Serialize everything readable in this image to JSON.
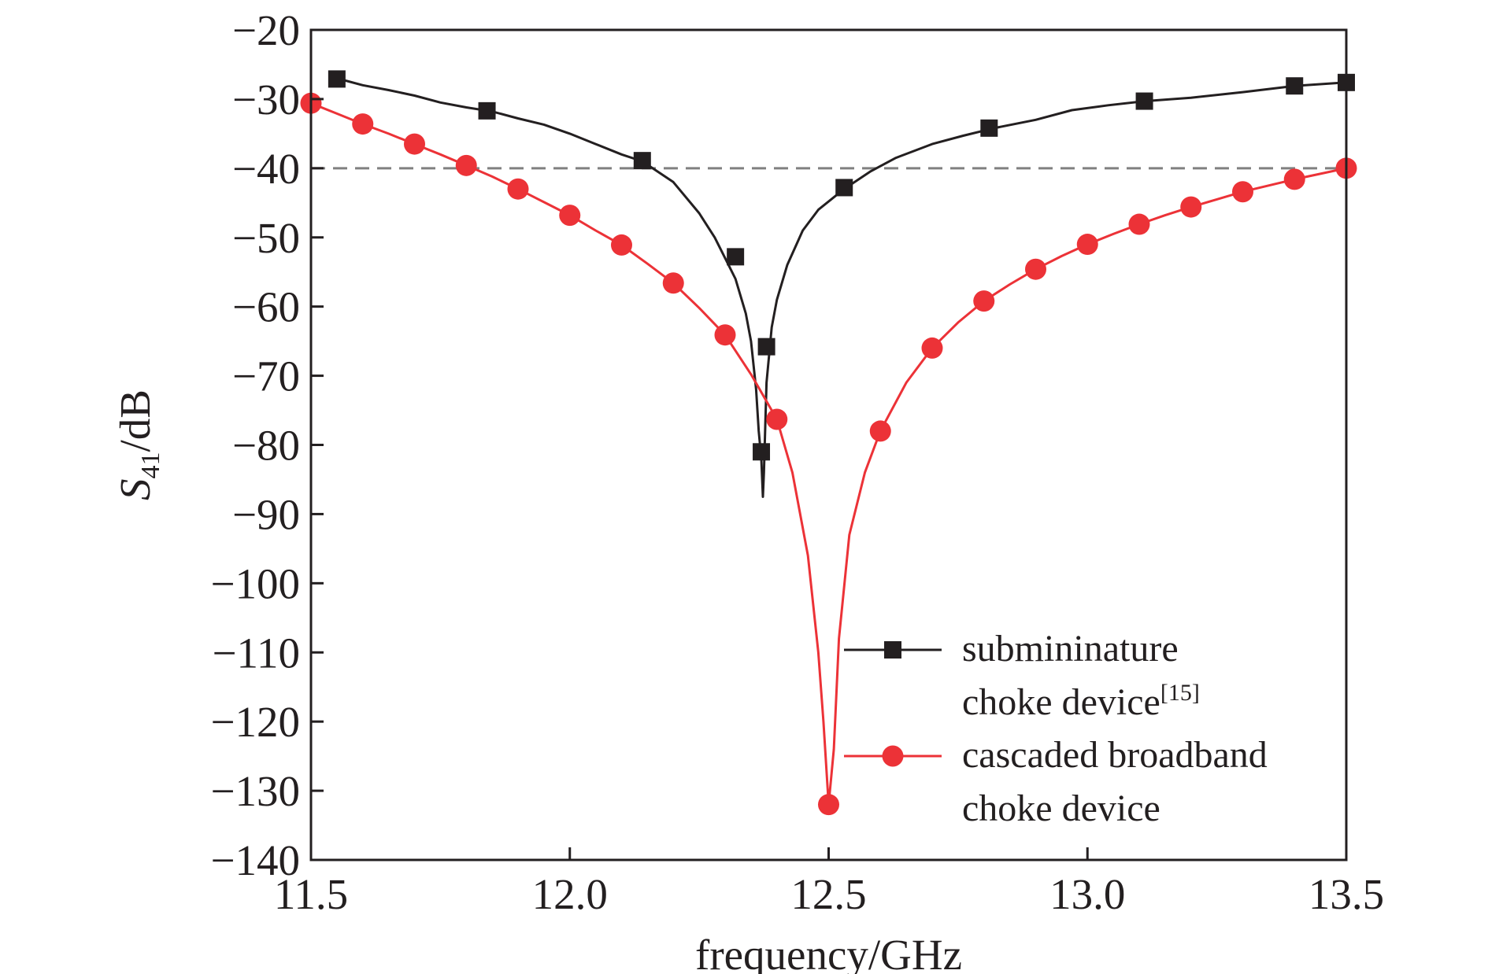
{
  "chart_data": {
    "type": "line",
    "xlabel": "frequency/GHz",
    "ylabel": {
      "main": "S",
      "sub": "41",
      "rest": "/dB"
    },
    "xlim": [
      11.5,
      13.5
    ],
    "ylim": [
      -140,
      -20
    ],
    "xticks": [
      11.5,
      12.0,
      12.5,
      13.0,
      13.5
    ],
    "xtick_labels": [
      "11.5",
      "12.0",
      "12.5",
      "13.0",
      "13.5"
    ],
    "yticks": [
      -20,
      -30,
      -40,
      -50,
      -60,
      -70,
      -80,
      -90,
      -100,
      -110,
      -120,
      -130,
      -140
    ],
    "ytick_labels": [
      "−20",
      "−30",
      "−40",
      "−50",
      "−60",
      "−70",
      "−80",
      "−90",
      "−100",
      "−110",
      "−120",
      "−130",
      "−140"
    ],
    "grid": false,
    "reference_line": {
      "y": -40,
      "style": "dashed",
      "color": "#808080"
    },
    "legend_position": "bottom-right",
    "series": [
      {
        "name_lines": [
          "submininature",
          "choke device"
        ],
        "name_superscript": "[15]",
        "color": "#231f20",
        "marker": "square",
        "x": [
          11.55,
          11.6,
          11.65,
          11.7,
          11.75,
          11.8,
          11.85,
          11.9,
          11.95,
          12.0,
          12.05,
          12.1,
          12.14,
          12.2,
          12.25,
          12.28,
          12.3,
          12.32,
          12.34,
          12.35,
          12.36,
          12.365,
          12.37,
          12.373,
          12.375,
          12.38,
          12.39,
          12.4,
          12.42,
          12.45,
          12.48,
          12.53,
          12.58,
          12.63,
          12.7,
          12.76,
          12.82,
          12.9,
          12.97,
          13.04,
          13.11,
          13.2,
          13.3,
          13.4,
          13.5
        ],
        "y": [
          -27,
          -28,
          -28.7,
          -29.5,
          -30.5,
          -31.2,
          -31.8,
          -32.8,
          -33.7,
          -35,
          -36.5,
          -38,
          -39,
          -42,
          -46.5,
          -50,
          -53,
          -56,
          -61,
          -65,
          -72,
          -78,
          -82,
          -87.5,
          -84,
          -71,
          -63,
          -59,
          -54,
          -49,
          -46,
          -43,
          -40.5,
          -38.5,
          -36.5,
          -35.3,
          -34.2,
          -33,
          -31.6,
          -30.9,
          -30.3,
          -29.8,
          -29,
          -28.1,
          -27.6
        ],
        "marker_x": [
          11.55,
          11.84,
          12.14,
          12.32,
          12.37,
          12.38,
          12.53,
          12.81,
          13.11,
          13.4,
          13.5
        ],
        "marker_y": [
          -27.1,
          -31.7,
          -38.9,
          -52.8,
          -81,
          -65.8,
          -42.8,
          -34.2,
          -30.3,
          -28.1,
          -27.6
        ]
      },
      {
        "name_lines": [
          "cascaded broadband",
          "choke device"
        ],
        "name_superscript": "",
        "color": "#ec3237",
        "marker": "circle",
        "x": [
          11.5,
          11.55,
          11.6,
          11.65,
          11.7,
          11.75,
          11.8,
          11.85,
          11.9,
          11.95,
          12.0,
          12.05,
          12.1,
          12.15,
          12.2,
          12.25,
          12.3,
          12.35,
          12.4,
          12.43,
          12.46,
          12.48,
          12.49,
          12.5,
          12.51,
          12.52,
          12.54,
          12.57,
          12.6,
          12.65,
          12.7,
          12.75,
          12.8,
          12.85,
          12.9,
          12.95,
          13.0,
          13.05,
          13.1,
          13.15,
          13.2,
          13.25,
          13.3,
          13.35,
          13.4,
          13.45,
          13.5
        ],
        "y": [
          -30.6,
          -32.1,
          -33.6,
          -35,
          -36.5,
          -38,
          -39.6,
          -41.2,
          -43,
          -44.9,
          -46.8,
          -49,
          -51.1,
          -53.8,
          -56.6,
          -60.2,
          -64.1,
          -69.8,
          -76.3,
          -84,
          -96,
          -110,
          -120,
          -132,
          -124,
          -108,
          -93,
          -84,
          -78,
          -71,
          -66,
          -62.3,
          -59.2,
          -56.8,
          -54.6,
          -52.7,
          -51,
          -49.5,
          -48.1,
          -46.8,
          -45.6,
          -44.5,
          -43.4,
          -42.5,
          -41.6,
          -40.8,
          -40
        ]
      }
    ],
    "marker_sets": [
      {
        "x": [
          11.55,
          11.84,
          12.14,
          12.32,
          12.37,
          12.38,
          12.53,
          12.81,
          13.11,
          13.4,
          13.5
        ],
        "y": [
          -27.1,
          -31.7,
          -38.9,
          -52.8,
          -81,
          -65.8,
          -42.8,
          -34.2,
          -30.3,
          -28.1,
          -27.6
        ]
      },
      {
        "x": [
          11.5,
          11.6,
          11.7,
          11.8,
          11.9,
          12.0,
          12.1,
          12.2,
          12.3,
          12.4,
          12.5,
          12.6,
          12.7,
          12.8,
          12.9,
          13.0,
          13.1,
          13.2,
          13.3,
          13.4,
          13.5
        ],
        "y": [
          -30.6,
          -33.6,
          -36.5,
          -39.6,
          -43,
          -46.8,
          -51.1,
          -56.6,
          -64.1,
          -76.3,
          -132,
          -78,
          -66,
          -59.2,
          -54.6,
          -51,
          -48.1,
          -45.6,
          -43.4,
          -41.6,
          -40
        ]
      }
    ]
  }
}
